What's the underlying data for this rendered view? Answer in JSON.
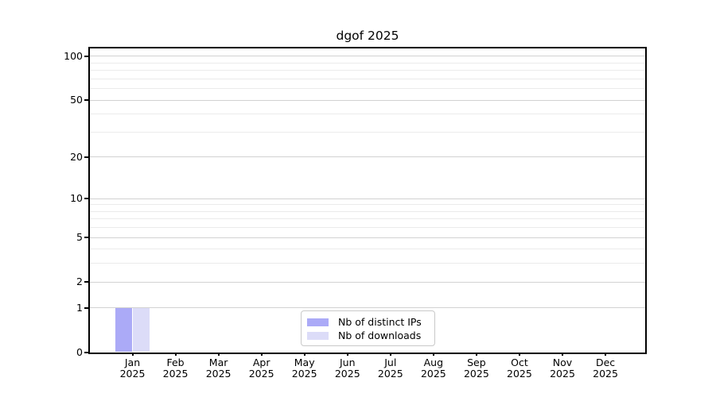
{
  "chart_data": {
    "type": "bar",
    "title": "dgof 2025",
    "categories": [
      "Jan",
      "Feb",
      "Mar",
      "Apr",
      "May",
      "Jun",
      "Jul",
      "Aug",
      "Sep",
      "Oct",
      "Nov",
      "Dec"
    ],
    "tick_year": "2025",
    "series": [
      {
        "name": "Nb of distinct IPs",
        "color": "#abaaf7",
        "values": [
          1,
          0,
          0,
          0,
          0,
          0,
          0,
          0,
          0,
          0,
          0,
          0
        ]
      },
      {
        "name": "Nb of downloads",
        "color": "#dcdcf8",
        "values": [
          1,
          0,
          0,
          0,
          0,
          0,
          0,
          0,
          0,
          0,
          0,
          0
        ]
      }
    ],
    "yscale": "log1p",
    "ylim": [
      0,
      113.3
    ],
    "y_major_ticks": [
      0,
      1,
      2,
      5,
      10,
      20,
      50,
      100
    ],
    "y_minor_ticks": [
      3,
      4,
      6,
      7,
      8,
      9,
      30,
      40,
      60,
      70,
      80,
      90
    ],
    "grid": "on",
    "legend_position": "lower center",
    "colors": {
      "grid_major": "#d2d2d2",
      "grid_minor": "#ebebeb",
      "spine": "#000000",
      "text": "#000000",
      "legend_border": "#c9c9c9",
      "background": "#ffffff"
    }
  }
}
